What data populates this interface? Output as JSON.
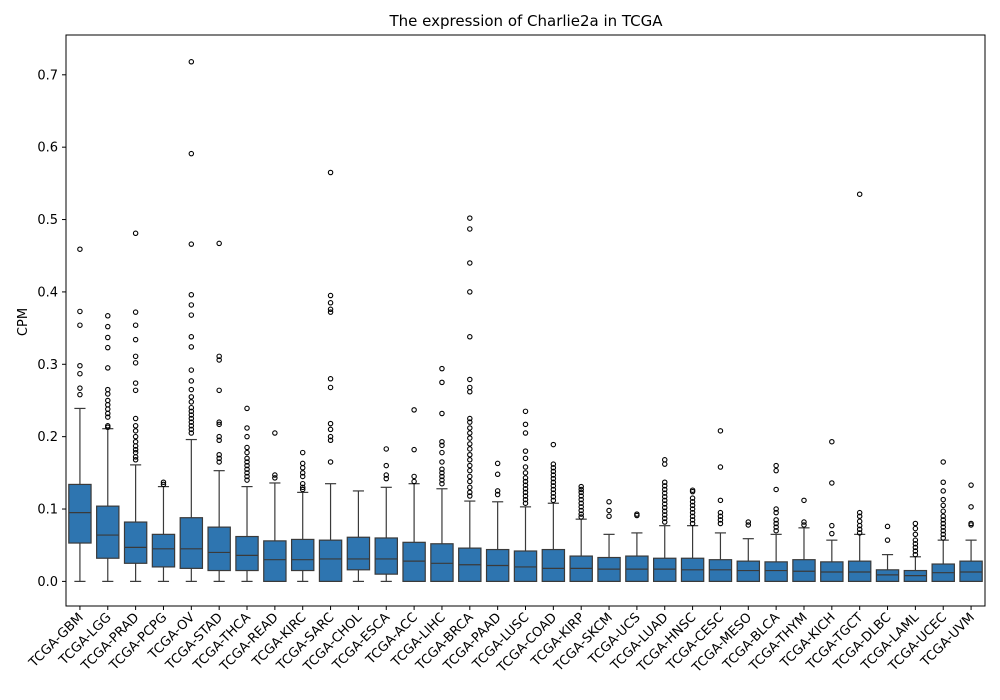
{
  "chart_data": {
    "type": "box",
    "title": "The expression of Charlie2a in TCGA",
    "xlabel": "",
    "ylabel": "CPM",
    "ylim": [
      -0.034,
      0.755
    ],
    "yticks": [
      0.0,
      0.1,
      0.2,
      0.3,
      0.4,
      0.5,
      0.6,
      0.7
    ],
    "ytick_labels": [
      "0.0",
      "0.1",
      "0.2",
      "0.3",
      "0.4",
      "0.5",
      "0.6",
      "0.7"
    ],
    "box_color": "#2e75b0",
    "edge_color": "#3a3a3a",
    "categories": [
      "TCGA-GBM",
      "TCGA-LGG",
      "TCGA-PRAD",
      "TCGA-PCPG",
      "TCGA-OV",
      "TCGA-STAD",
      "TCGA-THCA",
      "TCGA-READ",
      "TCGA-KIRC",
      "TCGA-SARC",
      "TCGA-CHOL",
      "TCGA-ESCA",
      "TCGA-ACC",
      "TCGA-LIHC",
      "TCGA-BRCA",
      "TCGA-PAAD",
      "TCGA-LUSC",
      "TCGA-COAD",
      "TCGA-KIRP",
      "TCGA-SKCM",
      "TCGA-UCS",
      "TCGA-LUAD",
      "TCGA-HNSC",
      "TCGA-CESC",
      "TCGA-MESO",
      "TCGA-BLCA",
      "TCGA-THYM",
      "TCGA-KICH",
      "TCGA-TGCT",
      "TCGA-DLBC",
      "TCGA-LAML",
      "TCGA-UCEC",
      "TCGA-UVM"
    ],
    "boxes": [
      {
        "whislo": 0,
        "q1": 0.053,
        "med": 0.095,
        "q3": 0.134,
        "whishi": 0.239,
        "fliers": [
          0.459,
          0.373,
          0.354,
          0.298,
          0.287,
          0.267,
          0.258
        ]
      },
      {
        "whislo": 0,
        "q1": 0.032,
        "med": 0.064,
        "q3": 0.104,
        "whishi": 0.211,
        "fliers": [
          0.367,
          0.352,
          0.337,
          0.323,
          0.295,
          0.265,
          0.259,
          0.25,
          0.244,
          0.238,
          0.232,
          0.227,
          0.215,
          0.213
        ]
      },
      {
        "whislo": 0,
        "q1": 0.025,
        "med": 0.047,
        "q3": 0.082,
        "whishi": 0.161,
        "fliers": [
          0.481,
          0.372,
          0.354,
          0.334,
          0.311,
          0.302,
          0.274,
          0.264,
          0.225,
          0.215,
          0.208,
          0.2,
          0.193,
          0.187,
          0.182,
          0.178,
          0.172,
          0.168
        ]
      },
      {
        "whislo": 0,
        "q1": 0.02,
        "med": 0.045,
        "q3": 0.065,
        "whishi": 0.131,
        "fliers": [
          0.137,
          0.134
        ]
      },
      {
        "whislo": 0,
        "q1": 0.018,
        "med": 0.045,
        "q3": 0.088,
        "whishi": 0.196,
        "fliers": [
          0.718,
          0.591,
          0.466,
          0.396,
          0.382,
          0.368,
          0.338,
          0.324,
          0.292,
          0.277,
          0.265,
          0.255,
          0.248,
          0.24,
          0.235,
          0.23,
          0.225,
          0.22,
          0.215,
          0.21,
          0.205
        ]
      },
      {
        "whislo": 0,
        "q1": 0.015,
        "med": 0.04,
        "q3": 0.075,
        "whishi": 0.153,
        "fliers": [
          0.467,
          0.311,
          0.306,
          0.264,
          0.22,
          0.217,
          0.2,
          0.195,
          0.175,
          0.17,
          0.165
        ]
      },
      {
        "whislo": 0,
        "q1": 0.015,
        "med": 0.036,
        "q3": 0.062,
        "whishi": 0.131,
        "fliers": [
          0.239,
          0.212,
          0.2,
          0.185,
          0.178,
          0.17,
          0.165,
          0.16,
          0.155,
          0.15,
          0.145,
          0.14
        ]
      },
      {
        "whislo": 0,
        "q1": 0,
        "med": 0.03,
        "q3": 0.056,
        "whishi": 0.136,
        "fliers": [
          0.205,
          0.147,
          0.143
        ]
      },
      {
        "whislo": 0,
        "q1": 0.015,
        "med": 0.03,
        "q3": 0.058,
        "whishi": 0.123,
        "fliers": [
          0.178,
          0.163,
          0.157,
          0.15,
          0.145,
          0.135,
          0.13,
          0.127
        ]
      },
      {
        "whislo": 0,
        "q1": 0,
        "med": 0.031,
        "q3": 0.057,
        "whishi": 0.135,
        "fliers": [
          0.565,
          0.395,
          0.385,
          0.376,
          0.372,
          0.28,
          0.268,
          0.218,
          0.21,
          0.2,
          0.195,
          0.165
        ]
      },
      {
        "whislo": 0,
        "q1": 0.016,
        "med": 0.031,
        "q3": 0.061,
        "whishi": 0.125,
        "fliers": []
      },
      {
        "whislo": 0,
        "q1": 0.01,
        "med": 0.031,
        "q3": 0.06,
        "whishi": 0.13,
        "fliers": [
          0.183,
          0.16,
          0.147,
          0.142
        ]
      },
      {
        "whislo": 0,
        "q1": 0,
        "med": 0.028,
        "q3": 0.054,
        "whishi": 0.135,
        "fliers": [
          0.237,
          0.182,
          0.145,
          0.138
        ]
      },
      {
        "whislo": 0,
        "q1": 0,
        "med": 0.025,
        "q3": 0.052,
        "whishi": 0.128,
        "fliers": [
          0.294,
          0.275,
          0.232,
          0.193,
          0.188,
          0.178,
          0.165,
          0.155,
          0.15,
          0.145,
          0.14,
          0.135
        ]
      },
      {
        "whislo": 0,
        "q1": 0,
        "med": 0.023,
        "q3": 0.046,
        "whishi": 0.111,
        "fliers": [
          0.502,
          0.487,
          0.44,
          0.4,
          0.338,
          0.279,
          0.268,
          0.262,
          0.225,
          0.22,
          0.212,
          0.205,
          0.198,
          0.19,
          0.183,
          0.175,
          0.168,
          0.16,
          0.153,
          0.145,
          0.138,
          0.13,
          0.123,
          0.118
        ]
      },
      {
        "whislo": 0,
        "q1": 0,
        "med": 0.022,
        "q3": 0.044,
        "whishi": 0.11,
        "fliers": [
          0.163,
          0.148,
          0.125,
          0.12
        ]
      },
      {
        "whislo": 0,
        "q1": 0,
        "med": 0.02,
        "q3": 0.042,
        "whishi": 0.103,
        "fliers": [
          0.235,
          0.217,
          0.205,
          0.18,
          0.17,
          0.158,
          0.15,
          0.143,
          0.138,
          0.133,
          0.128,
          0.123,
          0.118,
          0.113,
          0.108
        ]
      },
      {
        "whislo": 0,
        "q1": 0,
        "med": 0.018,
        "q3": 0.044,
        "whishi": 0.108,
        "fliers": [
          0.189,
          0.162,
          0.157,
          0.152,
          0.147,
          0.142,
          0.137,
          0.132,
          0.127,
          0.122,
          0.117,
          0.112
        ]
      },
      {
        "whislo": 0,
        "q1": 0,
        "med": 0.018,
        "q3": 0.035,
        "whishi": 0.086,
        "fliers": [
          0.131,
          0.127,
          0.123,
          0.118,
          0.113,
          0.108,
          0.103,
          0.098,
          0.093,
          0.089
        ]
      },
      {
        "whislo": 0,
        "q1": 0,
        "med": 0.017,
        "q3": 0.033,
        "whishi": 0.065,
        "fliers": [
          0.11,
          0.098,
          0.09
        ]
      },
      {
        "whislo": 0,
        "q1": 0,
        "med": 0.017,
        "q3": 0.035,
        "whishi": 0.067,
        "fliers": [
          0.093,
          0.091
        ]
      },
      {
        "whislo": 0,
        "q1": 0,
        "med": 0.017,
        "q3": 0.032,
        "whishi": 0.077,
        "fliers": [
          0.168,
          0.162,
          0.137,
          0.132,
          0.127,
          0.122,
          0.117,
          0.112,
          0.107,
          0.102,
          0.097,
          0.092,
          0.087,
          0.082
        ]
      },
      {
        "whislo": 0,
        "q1": 0,
        "med": 0.016,
        "q3": 0.032,
        "whishi": 0.077,
        "fliers": [
          0.126,
          0.124,
          0.115,
          0.11,
          0.105,
          0.1,
          0.095,
          0.09,
          0.085,
          0.08
        ]
      },
      {
        "whislo": 0,
        "q1": 0,
        "med": 0.016,
        "q3": 0.03,
        "whishi": 0.067,
        "fliers": [
          0.208,
          0.158,
          0.112,
          0.095,
          0.09,
          0.085,
          0.08
        ]
      },
      {
        "whislo": 0,
        "q1": 0,
        "med": 0.015,
        "q3": 0.028,
        "whishi": 0.059,
        "fliers": [
          0.082,
          0.078
        ]
      },
      {
        "whislo": 0,
        "q1": 0,
        "med": 0.015,
        "q3": 0.027,
        "whishi": 0.065,
        "fliers": [
          0.16,
          0.153,
          0.127,
          0.1,
          0.095,
          0.085,
          0.08,
          0.075,
          0.07
        ]
      },
      {
        "whislo": 0,
        "q1": 0,
        "med": 0.014,
        "q3": 0.03,
        "whishi": 0.074,
        "fliers": [
          0.112,
          0.082,
          0.078
        ]
      },
      {
        "whislo": 0,
        "q1": 0,
        "med": 0.013,
        "q3": 0.027,
        "whishi": 0.057,
        "fliers": [
          0.193,
          0.136,
          0.077,
          0.066
        ]
      },
      {
        "whislo": 0,
        "q1": 0,
        "med": 0.013,
        "q3": 0.028,
        "whishi": 0.065,
        "fliers": [
          0.535,
          0.095,
          0.09,
          0.083,
          0.077,
          0.072,
          0.067
        ]
      },
      {
        "whislo": 0,
        "q1": 0,
        "med": 0.009,
        "q3": 0.016,
        "whishi": 0.037,
        "fliers": [
          0.076,
          0.057
        ]
      },
      {
        "whislo": 0,
        "q1": 0,
        "med": 0.008,
        "q3": 0.015,
        "whishi": 0.034,
        "fliers": [
          0.08,
          0.073,
          0.065,
          0.057,
          0.052,
          0.047,
          0.042,
          0.037
        ]
      },
      {
        "whislo": 0,
        "q1": 0,
        "med": 0.012,
        "q3": 0.024,
        "whishi": 0.057,
        "fliers": [
          0.165,
          0.137,
          0.125,
          0.113,
          0.105,
          0.097,
          0.09,
          0.085,
          0.08,
          0.075,
          0.07,
          0.065,
          0.06
        ]
      },
      {
        "whislo": 0,
        "q1": 0,
        "med": 0.013,
        "q3": 0.028,
        "whishi": 0.057,
        "fliers": [
          0.133,
          0.103,
          0.08,
          0.078
        ]
      }
    ],
    "grid": false,
    "legend": "none"
  }
}
